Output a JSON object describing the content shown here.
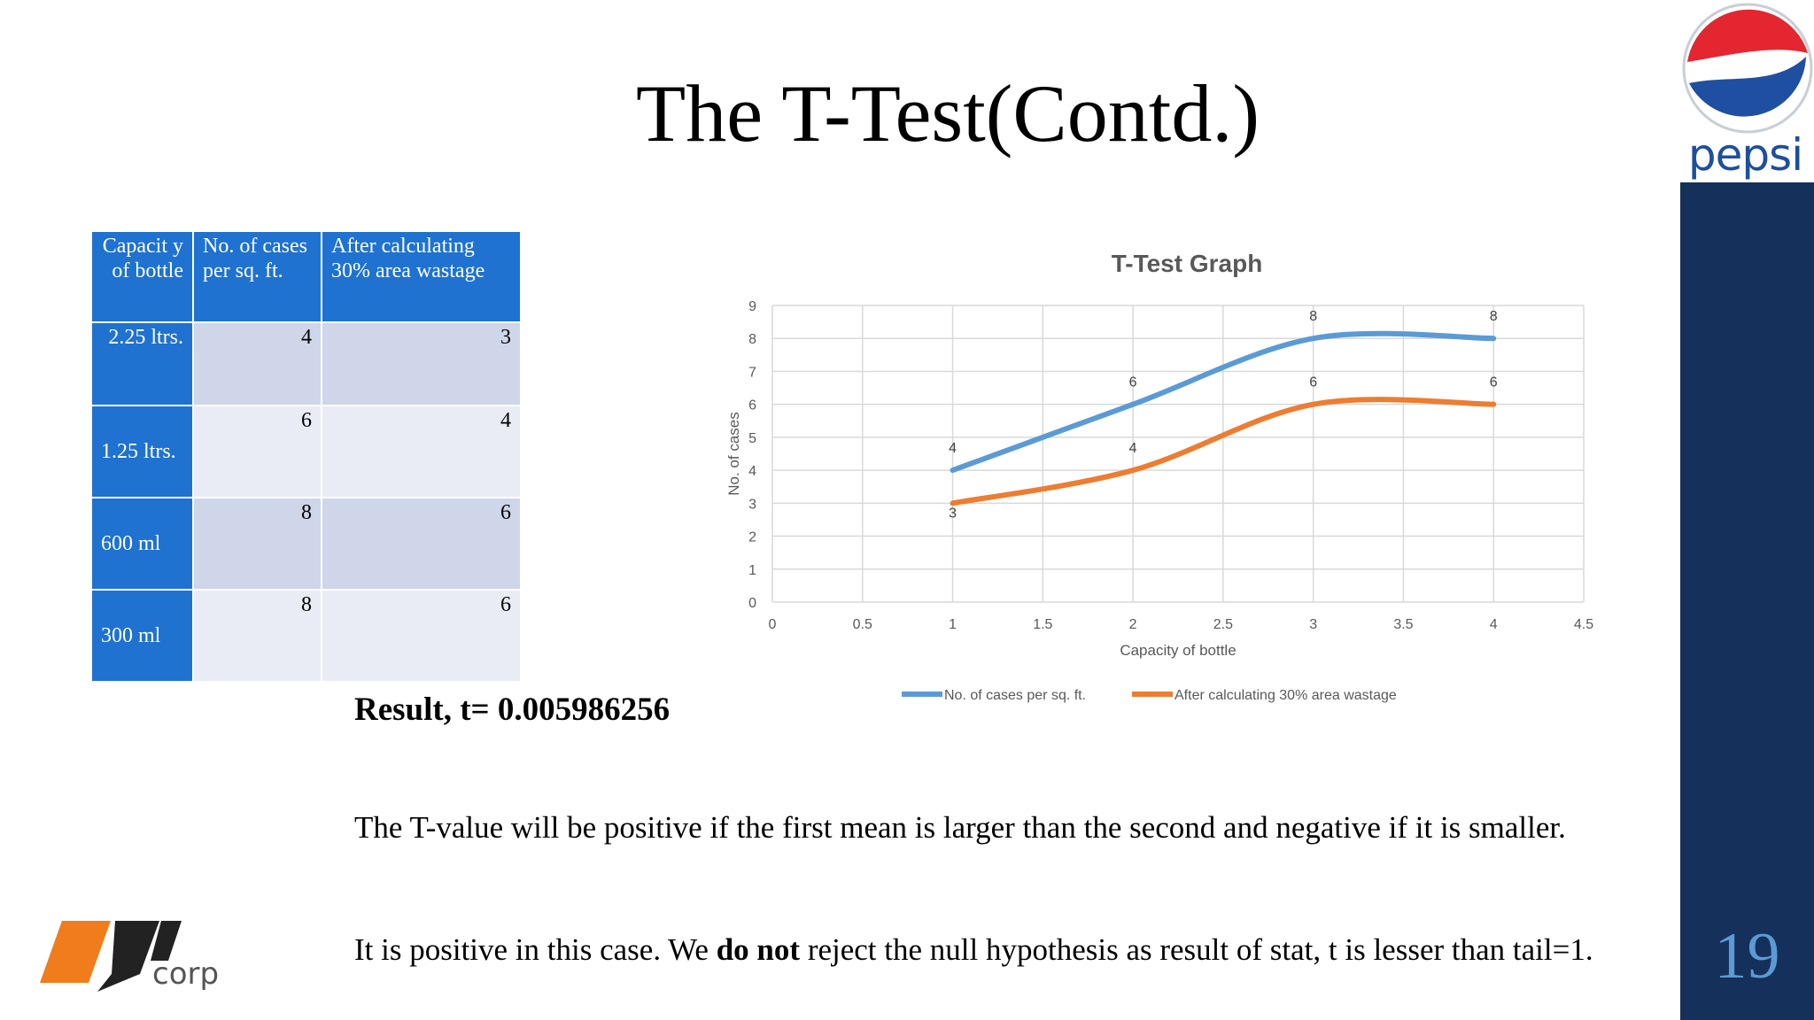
{
  "slide": {
    "title": "The T-Test(Contd.)",
    "page_number": "19",
    "brand_top": "pepsi",
    "brand_bottom": "corp"
  },
  "table": {
    "headers": [
      "Capacit y of bottle",
      "No. of cases per sq. ft.",
      "After calculating 30% area wastage"
    ],
    "rows": [
      {
        "capacity": "2.25 ltrs.",
        "cases": "4",
        "after": "3"
      },
      {
        "capacity": "1.25 ltrs.",
        "cases": "6",
        "after": "4"
      },
      {
        "capacity": "600 ml",
        "cases": "8",
        "after": "6"
      },
      {
        "capacity": "300 ml",
        "cases": "8",
        "after": "6"
      }
    ]
  },
  "result": {
    "label": "Result, t= 0.005986256"
  },
  "paragraphs": {
    "p1": "The T-value will be positive if the first mean is larger than the second and negative if it is smaller.",
    "p2_before": "It is positive in this case.  We ",
    "p2_bold": "do not",
    "p2_after": " reject the null hypothesis as result of stat, t is lesser than tail=1."
  },
  "colors": {
    "series1": "#5b9bd5",
    "series2": "#ed7d31",
    "sidebar": "#15305a",
    "table_header": "#1f72d0"
  },
  "chart_data": {
    "type": "scatter",
    "title": "T-Test Graph",
    "xlabel": "Capacity of bottle",
    "ylabel": "No. of cases",
    "xlim": [
      0,
      4.5
    ],
    "ylim": [
      0,
      9
    ],
    "xticks": [
      "0",
      "0.5",
      "1",
      "1.5",
      "2",
      "2.5",
      "3",
      "3.5",
      "4",
      "4.5"
    ],
    "yticks": [
      "0",
      "1",
      "2",
      "3",
      "4",
      "5",
      "6",
      "7",
      "8",
      "9"
    ],
    "grid": true,
    "smooth": true,
    "legend": "bottom",
    "series": [
      {
        "name": "No. of cases per sq. ft.",
        "x": [
          1,
          2,
          3,
          4
        ],
        "y": [
          4,
          6,
          8,
          8
        ],
        "labels": [
          "4",
          "6",
          "8",
          "8"
        ]
      },
      {
        "name": "After calculating 30% area wastage",
        "x": [
          1,
          2,
          3,
          4
        ],
        "y": [
          3,
          4,
          6,
          6
        ],
        "labels": [
          "3",
          "4",
          "6",
          "6"
        ]
      }
    ]
  }
}
